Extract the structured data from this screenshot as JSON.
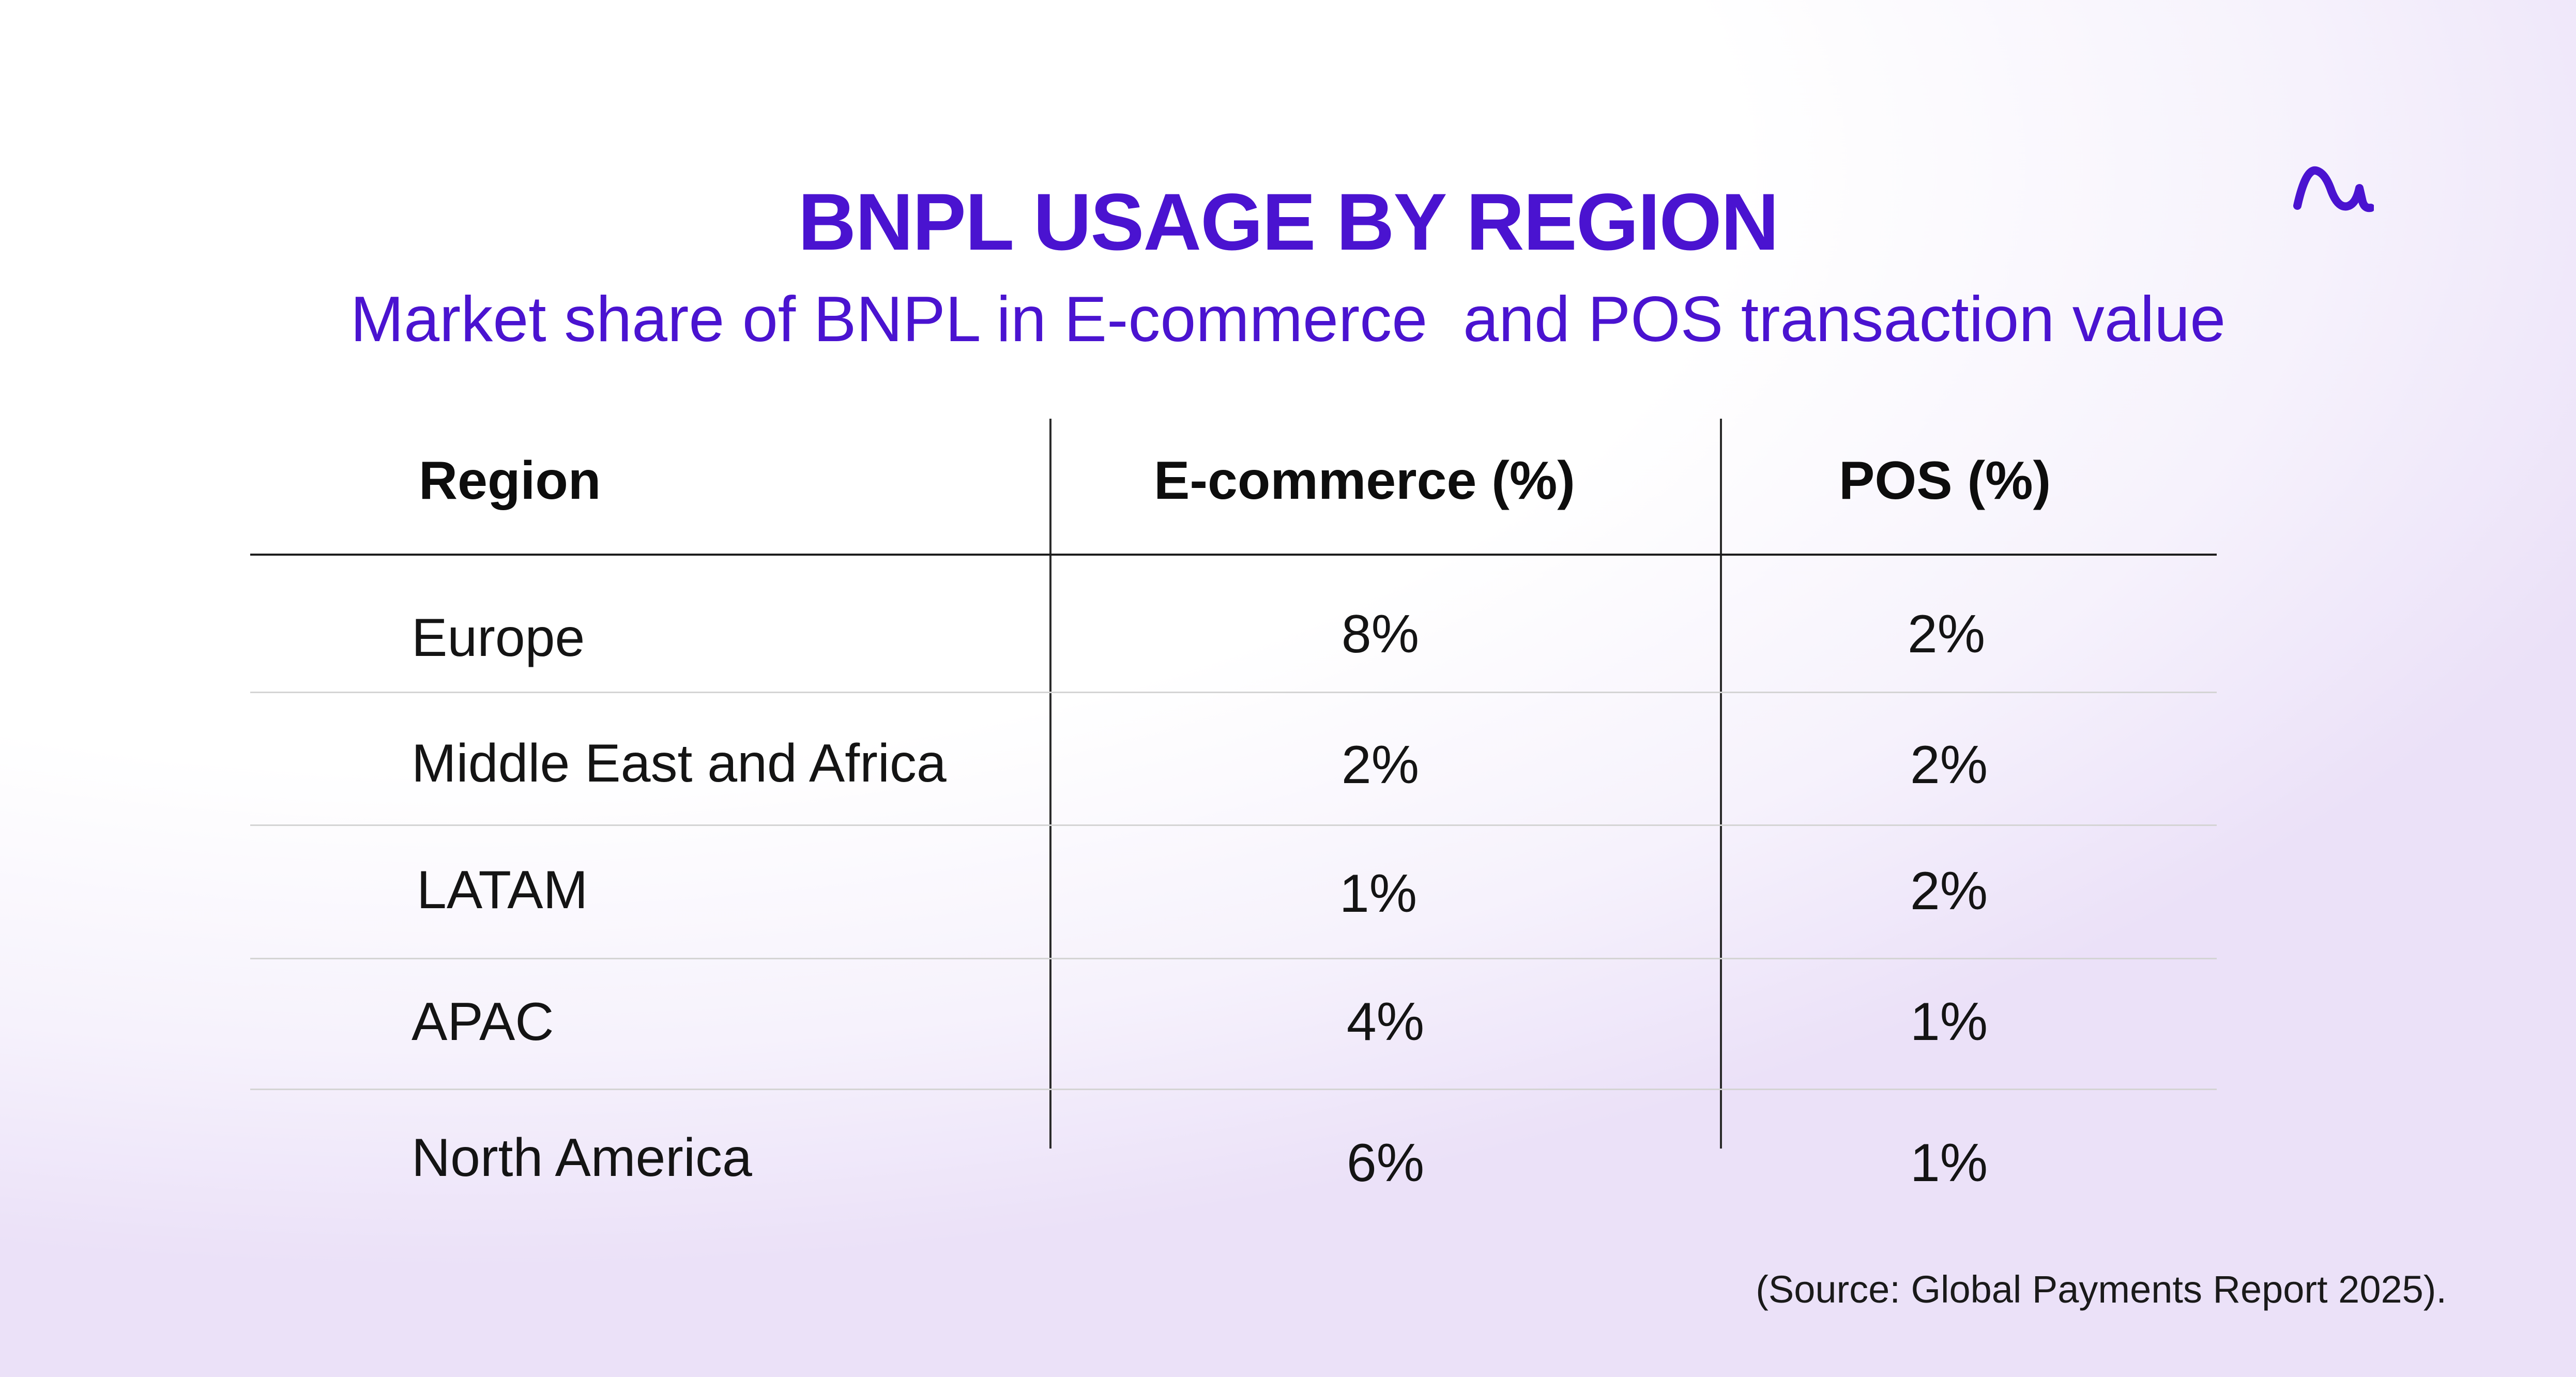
{
  "brand": {
    "logo_icon": "wave-logo-icon",
    "accent_color": "#4a13d0"
  },
  "title": "BNPL USAGE BY REGION",
  "subtitle": "Market share of BNPL in E-commerce  and POS transaction value",
  "chart_data": {
    "type": "table",
    "title": "BNPL USAGE BY REGION",
    "subtitle": "Market share of BNPL in E-commerce  and POS transaction value",
    "columns": [
      "Region",
      "E-commerce (%)",
      "POS (%)"
    ],
    "rows": [
      {
        "region": "Europe",
        "ecommerce": "8%",
        "pos": "2%"
      },
      {
        "region": "Middle East and Africa",
        "ecommerce": "2%",
        "pos": "2%"
      },
      {
        "region": "LATAM",
        "ecommerce": "1%",
        "pos": "2%"
      },
      {
        "region": "APAC",
        "ecommerce": "4%",
        "pos": "1%"
      },
      {
        "region": "North America",
        "ecommerce": "6%",
        "pos": "1%"
      }
    ]
  },
  "source": "(Source: Global Payments Report 2025)."
}
